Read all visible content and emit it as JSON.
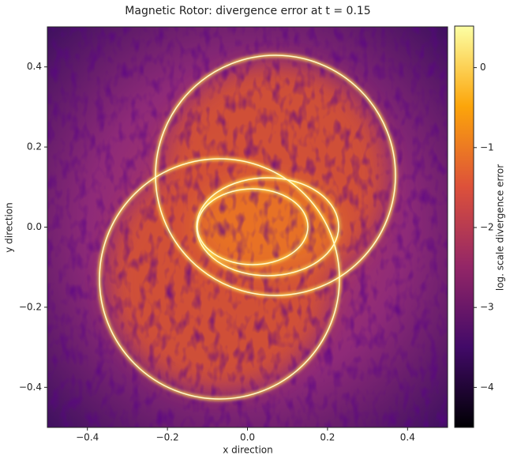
{
  "chart_data": {
    "type": "heatmap",
    "title": "Magnetic Rotor: divergence error at t = 0.15",
    "x_label": "x direction",
    "y_label": "y direction",
    "xlim": [
      -0.5,
      0.5
    ],
    "ylim": [
      -0.5,
      0.5
    ],
    "xticks": [
      {
        "value": -0.4,
        "label": "−0.4"
      },
      {
        "value": -0.2,
        "label": "−0.2"
      },
      {
        "value": 0,
        "label": "0.0"
      },
      0.2,
      0.4
    ],
    "yticks": [
      {
        "value": -0.4,
        "label": "−0.4"
      },
      {
        "value": -0.2,
        "label": "−0.2"
      },
      {
        "value": 0,
        "label": "0.0"
      },
      0.2,
      0.4
    ],
    "colormap": "inferno",
    "colorbar_label": "log. scale divergence error",
    "clim": [
      -4.5,
      0.52
    ],
    "colorbar_ticks": [
      {
        "value": -4,
        "label": "−4"
      },
      {
        "value": -3,
        "label": "−3"
      },
      {
        "value": -2,
        "label": "−2"
      },
      {
        "value": -1,
        "label": "−1"
      },
      0
    ]
  }
}
